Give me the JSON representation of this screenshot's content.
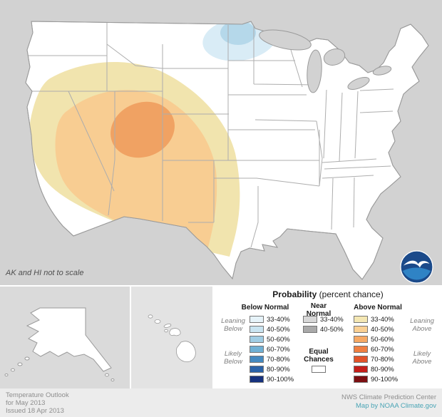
{
  "map": {
    "note": "AK and HI not to scale",
    "colors": {
      "background": "#d2d2d2",
      "land": "#ffffff",
      "border": "#9a9a9a",
      "state_line": "#adadad",
      "above_33_40": "#f1e4ae",
      "above_40_50": "#f8cd92",
      "above_50_60": "#f0a263",
      "below_33_40": "#d9ecf6",
      "below_40_50": "#b5d8ea",
      "inset_ak_bg": "#dadada",
      "inset_hi_bg": "#e3e3e3"
    }
  },
  "logo": {
    "navy": "#1b4a8a",
    "blue": "#2f83c5",
    "gull": "#ffffff"
  },
  "legend": {
    "title_bold": "Probability",
    "title_rest": " (percent chance)",
    "below": {
      "header": "Below Normal",
      "leaning": "Leaning\nBelow",
      "likely": "Likely\nBelow",
      "items": [
        {
          "label": "33-40%",
          "color": "#e6f3f9"
        },
        {
          "label": "40-50%",
          "color": "#c9e4f1"
        },
        {
          "label": "50-60%",
          "color": "#a0cde4"
        },
        {
          "label": "60-70%",
          "color": "#6fb0d4"
        },
        {
          "label": "70-80%",
          "color": "#4489c0"
        },
        {
          "label": "80-90%",
          "color": "#2a62a8"
        },
        {
          "label": "90-100%",
          "color": "#16327e"
        }
      ]
    },
    "near": {
      "header": "Near\nNormal",
      "items": [
        {
          "label": "33-40%",
          "color": "#d8d8d8"
        },
        {
          "label": "40-50%",
          "color": "#a9a9a9"
        }
      ],
      "equal_chances": "Equal\nChances",
      "equal_color": "#ffffff"
    },
    "above": {
      "header": "Above Normal",
      "leaning": "Leaning\nAbove",
      "likely": "Likely\nAbove",
      "items": [
        {
          "label": "33-40%",
          "color": "#f4e7b3"
        },
        {
          "label": "40-50%",
          "color": "#fad094"
        },
        {
          "label": "50-60%",
          "color": "#f6a965"
        },
        {
          "label": "60-70%",
          "color": "#ef7f42"
        },
        {
          "label": "70-80%",
          "color": "#e1532a"
        },
        {
          "label": "80-90%",
          "color": "#c41f1a"
        },
        {
          "label": "90-100%",
          "color": "#7c0f12"
        }
      ]
    }
  },
  "footer": {
    "left_lines": [
      "Temperature Outlook",
      "for May 2013",
      "Issued 18 Apr 2013"
    ],
    "right_line1": "NWS Climate Prediction Center",
    "right_line2": "Map by NOAA Climate.gov",
    "link_color": "#49a4b5"
  }
}
